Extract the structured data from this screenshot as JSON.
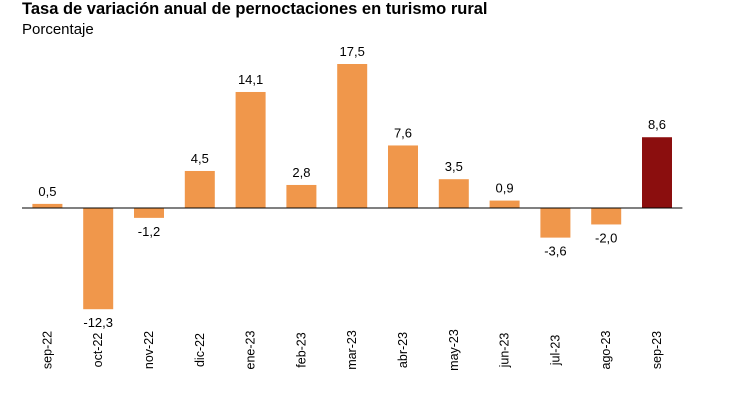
{
  "title": "Tasa de variación anual de pernoctaciones en turismo rural",
  "subtitle": "Porcentaje",
  "colors": {
    "bar": "#F0974B",
    "highlight": "#8B0E0E",
    "axis": "#000000"
  },
  "chart_data": {
    "type": "bar",
    "title": "Tasa de variación anual de pernoctaciones en turismo rural",
    "subtitle": "Porcentaje",
    "xlabel": "",
    "ylabel": "",
    "categories": [
      "sep-22",
      "oct-22",
      "nov-22",
      "dic-22",
      "ene-23",
      "feb-23",
      "mar-23",
      "abr-23",
      "may-23",
      "jun-23",
      "jul-23",
      "ago-23",
      "sep-23"
    ],
    "values": [
      0.5,
      -12.3,
      -1.2,
      4.5,
      14.1,
      2.8,
      17.5,
      7.6,
      3.5,
      0.9,
      -3.6,
      -2.0,
      8.6
    ],
    "value_labels": [
      "0,5",
      "-12,3",
      "-1,2",
      "4,5",
      "14,1",
      "2,8",
      "17,5",
      "7,6",
      "3,5",
      "0,9",
      "-3,6",
      "-2,0",
      "8,6"
    ],
    "highlight_index": 12,
    "ylim": [
      -12.3,
      17.5
    ],
    "grid": false,
    "legend": "none",
    "tick_rotation": "vertical"
  }
}
